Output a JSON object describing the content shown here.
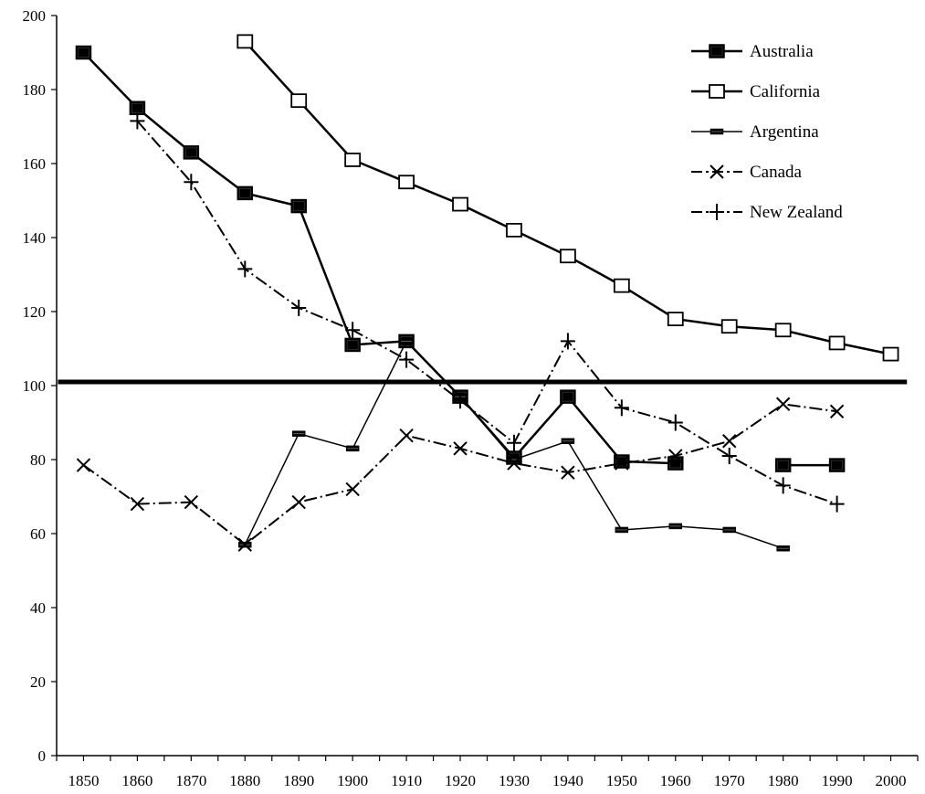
{
  "chart_data": {
    "type": "line",
    "title": "",
    "xlabel": "",
    "ylabel": "",
    "xlim": [
      1845,
      2005
    ],
    "ylim": [
      0,
      200
    ],
    "x_ticks": [
      1850,
      1860,
      1870,
      1880,
      1890,
      1900,
      1910,
      1920,
      1930,
      1940,
      1950,
      1960,
      1970,
      1980,
      1990,
      2000
    ],
    "y_ticks": [
      0,
      20,
      40,
      60,
      80,
      100,
      120,
      140,
      160,
      180,
      200
    ],
    "grid": false,
    "legend_position": "top-right",
    "reference_line": {
      "y": 101,
      "x_from": 1850,
      "x_to": 2003
    },
    "series": [
      {
        "name": "Australia",
        "marker": "filled-square",
        "line": "solid-thick",
        "points": [
          [
            1850,
            190
          ],
          [
            1860,
            175
          ],
          [
            1870,
            163
          ],
          [
            1880,
            152
          ],
          [
            1890,
            148.5
          ],
          [
            1900,
            111
          ],
          [
            1910,
            112
          ],
          [
            1920,
            97
          ],
          [
            1930,
            80.5
          ],
          [
            1940,
            97
          ],
          [
            1950,
            79.5
          ],
          [
            1960,
            79
          ],
          [
            1970,
            null
          ],
          [
            1980,
            78.5
          ],
          [
            1990,
            78.5
          ]
        ]
      },
      {
        "name": "California",
        "marker": "open-square",
        "line": "solid-thick",
        "points": [
          [
            1880,
            193
          ],
          [
            1890,
            177
          ],
          [
            1900,
            161
          ],
          [
            1910,
            155
          ],
          [
            1920,
            149
          ],
          [
            1930,
            142
          ],
          [
            1940,
            135
          ],
          [
            1950,
            127
          ],
          [
            1960,
            118
          ],
          [
            1970,
            116
          ],
          [
            1980,
            115
          ],
          [
            1990,
            111.5
          ],
          [
            2000,
            108.5
          ]
        ]
      },
      {
        "name": "Argentina",
        "marker": "dash",
        "line": "solid-thin",
        "points": [
          [
            1880,
            57
          ],
          [
            1890,
            87
          ],
          [
            1900,
            83
          ],
          [
            1910,
            112
          ],
          [
            1920,
            97
          ],
          [
            1930,
            80
          ],
          [
            1940,
            85
          ],
          [
            1950,
            61
          ],
          [
            1960,
            62
          ],
          [
            1970,
            61
          ],
          [
            1980,
            56
          ]
        ]
      },
      {
        "name": "Canada",
        "marker": "x",
        "line": "dashed",
        "points": [
          [
            1850,
            78.5
          ],
          [
            1860,
            68
          ],
          [
            1870,
            68.5
          ],
          [
            1880,
            57
          ],
          [
            1890,
            68.5
          ],
          [
            1900,
            72
          ],
          [
            1910,
            86.5
          ],
          [
            1920,
            83
          ],
          [
            1930,
            79
          ],
          [
            1940,
            76.5
          ],
          [
            1950,
            79
          ],
          [
            1960,
            81
          ],
          [
            1970,
            85
          ],
          [
            1980,
            95
          ],
          [
            1990,
            93
          ]
        ]
      },
      {
        "name": "New Zealand",
        "marker": "plus",
        "line": "dashed",
        "points": [
          [
            1860,
            171.5
          ],
          [
            1870,
            155
          ],
          [
            1880,
            131.5
          ],
          [
            1890,
            121
          ],
          [
            1900,
            115
          ],
          [
            1910,
            107
          ],
          [
            1920,
            96
          ],
          [
            1930,
            84.5
          ],
          [
            1940,
            112
          ],
          [
            1950,
            94
          ],
          [
            1960,
            90
          ],
          [
            1970,
            81
          ],
          [
            1980,
            73
          ],
          [
            1990,
            68
          ]
        ]
      }
    ]
  }
}
